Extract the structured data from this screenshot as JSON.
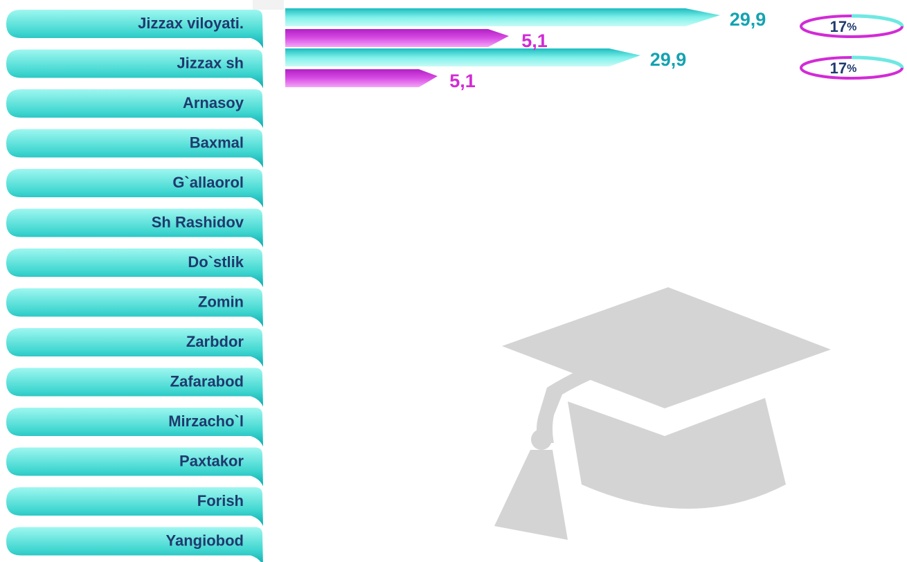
{
  "regions": [
    "Jizzax viloyati.",
    "Jizzax sh",
    "Arnasoy",
    "Baxmal",
    "G`allaorol",
    "Sh Rashidov",
    "Do`stlik",
    "Zomin",
    "Zarbdor",
    "Zafarabod",
    "Mirzacho`l",
    "Paxtakor",
    "Forish",
    "Yangiobod"
  ],
  "rows": [
    {
      "bars": [
        "29,9",
        "5,1"
      ],
      "percent": "17",
      "percent_unit": "%"
    },
    {
      "bars": [
        "29,9",
        "5,1"
      ],
      "percent": "17",
      "percent_unit": "%"
    }
  ]
}
